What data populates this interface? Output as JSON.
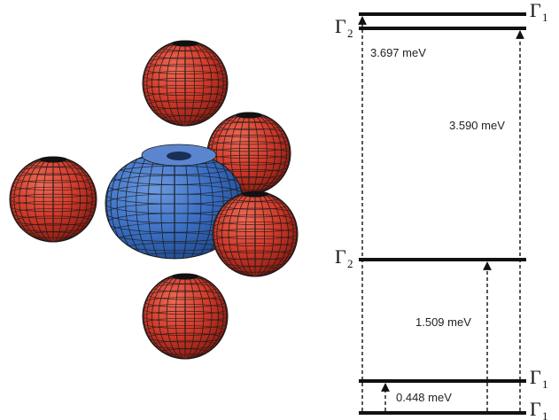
{
  "molecule": {
    "central_atom_color": "#3a6fc4",
    "ligand_color": "#d23a2a",
    "mesh_color": "#1a1a1a"
  },
  "levels": [
    {
      "id": "gamma1-top",
      "symbol": "Γ",
      "subscript": "1"
    },
    {
      "id": "gamma2-upper",
      "symbol": "Γ",
      "subscript": "2"
    },
    {
      "id": "gamma2-middle",
      "symbol": "Γ",
      "subscript": "2"
    },
    {
      "id": "gamma1-lower",
      "symbol": "Γ",
      "subscript": "1"
    },
    {
      "id": "gamma1-ground",
      "symbol": "Γ",
      "subscript": "1"
    }
  ],
  "transitions": [
    {
      "id": "t-3697",
      "label": "3.697 meV"
    },
    {
      "id": "t-3590",
      "label": "3.590 meV"
    },
    {
      "id": "t-1509",
      "label": "1.509 meV"
    },
    {
      "id": "t-0448",
      "label": "0.448 meV"
    }
  ]
}
